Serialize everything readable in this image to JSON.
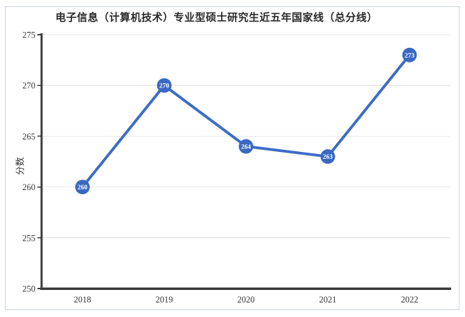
{
  "chart_data": {
    "type": "line",
    "title": "电子信息（计算机技术）专业型硕士研究生近五年国家线（总分线）",
    "xlabel": "",
    "ylabel": "分数",
    "categories": [
      "2018",
      "2019",
      "2020",
      "2021",
      "2022"
    ],
    "values": [
      260,
      270,
      264,
      263,
      273
    ],
    "point_labels": [
      "260",
      "270",
      "264",
      "263",
      "273"
    ],
    "ylim": [
      250,
      275
    ],
    "yticks": [
      250,
      255,
      260,
      265,
      270,
      275
    ],
    "grid": "horizontal gridlines at each y tick",
    "legend": "none",
    "colors": {
      "line": "#3d6dc5",
      "marker_fill": "#3a68c2",
      "marker_text": "#ffffff",
      "axis": "#3a3a3a",
      "grid": "#e9e9e9",
      "tick_text": "#333333",
      "title_text": "#2a2a2a",
      "border": "#ccd4db",
      "background": "#ffffff"
    }
  }
}
